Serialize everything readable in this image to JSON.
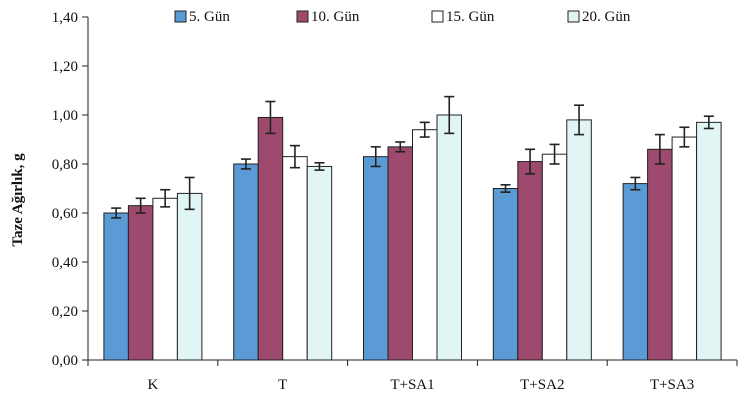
{
  "chart_data": {
    "type": "bar",
    "ylabel": "Taze Ağırlık, g",
    "xlabel": "",
    "ylim": [
      0,
      1.4
    ],
    "y_ticks": [
      0.0,
      0.2,
      0.4,
      0.6,
      0.8,
      1.0,
      1.2,
      1.4
    ],
    "y_tick_labels": [
      "0,00",
      "0,20",
      "0,40",
      "0,60",
      "0,80",
      "1,00",
      "1,20",
      "1,40"
    ],
    "categories": [
      "K",
      "T",
      "T+SA1",
      "T+SA2",
      "T+SA3"
    ],
    "legend_position": "top",
    "grid": false,
    "series": [
      {
        "name": "5. Gün",
        "color": "#5b9bd5",
        "values": [
          0.6,
          0.8,
          0.83,
          0.7,
          0.72
        ],
        "errors": [
          0.02,
          0.02,
          0.04,
          0.015,
          0.025
        ]
      },
      {
        "name": "10. Gün",
        "color": "#9e4a6e",
        "values": [
          0.63,
          0.99,
          0.87,
          0.81,
          0.86
        ],
        "errors": [
          0.03,
          0.065,
          0.02,
          0.05,
          0.06
        ]
      },
      {
        "name": "15. Gün",
        "color": "#ffffff",
        "values": [
          0.66,
          0.83,
          0.94,
          0.84,
          0.91
        ],
        "errors": [
          0.035,
          0.045,
          0.03,
          0.04,
          0.04
        ]
      },
      {
        "name": "20. Gün",
        "color": "#e2f5f5",
        "values": [
          0.68,
          0.79,
          1.0,
          0.98,
          0.97
        ],
        "errors": [
          0.065,
          0.015,
          0.075,
          0.06,
          0.025
        ]
      }
    ]
  }
}
